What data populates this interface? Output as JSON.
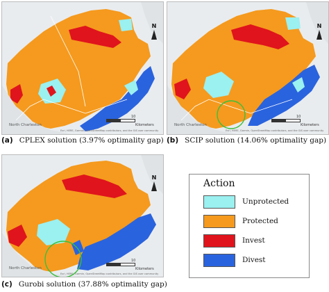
{
  "colors": {
    "unprotected": "#9bf0f0",
    "protected": "#f59a1e",
    "invest": "#e0141c",
    "divest": "#2a63de",
    "highlight": "#3bbf3b",
    "land": "#e9ecef"
  },
  "panels": [
    {
      "letter": "(a)",
      "caption": "CPLEX solution (3.97% optimality gap)",
      "north": "N",
      "scale_label": "Kilometers",
      "scale_value": "10",
      "place": "North Charleston",
      "credits": "Esri, HERE, Garmin, OpenStreetMap contributors, and the GIS user community",
      "highlight_circle": false
    },
    {
      "letter": "(b)",
      "caption": "SCIP solution (14.06% optimality gap)",
      "north": "N",
      "scale_label": "Kilometers",
      "scale_value": "10",
      "place": "North Charleston",
      "credits": "Esri, HERE, Garmin, OpenStreetMap contributors, and the GIS user community",
      "highlight_circle": true
    },
    {
      "letter": "(c)",
      "caption": "Gurobi solution (37.88% optimality gap)",
      "north": "N",
      "scale_label": "Kilometers",
      "scale_value": "10",
      "place": "North Charleston",
      "credits": "Esri, HERE, Garmin, OpenStreetMap contributors, and the GIS user community",
      "highlight_circle": true
    }
  ],
  "legend": {
    "title": "Action",
    "items": [
      {
        "label": "Unprotected",
        "color_key": "unprotected"
      },
      {
        "label": "Protected",
        "color_key": "protected"
      },
      {
        "label": "Invest",
        "color_key": "invest"
      },
      {
        "label": "Divest",
        "color_key": "divest"
      }
    ]
  }
}
